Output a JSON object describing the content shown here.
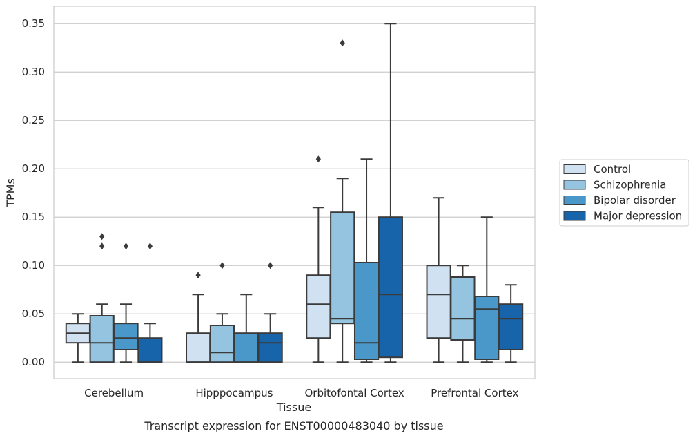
{
  "chart_data": {
    "type": "box",
    "xlabel": "Tissue",
    "ylabel": "TPMs",
    "caption": "Transcript expression for ENST00000483040 by tissue",
    "ylim": [
      -0.017,
      0.368
    ],
    "yticks": [
      "0.00",
      "0.05",
      "0.10",
      "0.15",
      "0.20",
      "0.25",
      "0.30",
      "0.35"
    ],
    "grid": "horizontal",
    "legend_position": "right",
    "categories": [
      "Cerebellum",
      "Hipppocampus",
      "Orbitofontal Cortex",
      "Prefrontal Cortex"
    ],
    "series": [
      {
        "name": "Control",
        "color": "#d0e1f2",
        "boxes": [
          {
            "whisker_low": 0.0,
            "q1": 0.02,
            "median": 0.03,
            "q3": 0.04,
            "whisker_high": 0.05,
            "outliers": []
          },
          {
            "whisker_low": 0.0,
            "q1": 0.0,
            "median": 0.0,
            "q3": 0.03,
            "whisker_high": 0.07,
            "outliers": [
              0.09
            ]
          },
          {
            "whisker_low": 0.0,
            "q1": 0.025,
            "median": 0.06,
            "q3": 0.09,
            "whisker_high": 0.16,
            "outliers": [
              0.21
            ]
          },
          {
            "whisker_low": 0.0,
            "q1": 0.025,
            "median": 0.07,
            "q3": 0.1,
            "whisker_high": 0.17,
            "outliers": []
          }
        ]
      },
      {
        "name": "Schizophrenia",
        "color": "#94c4df",
        "boxes": [
          {
            "whisker_low": 0.0,
            "q1": 0.0,
            "median": 0.02,
            "q3": 0.048,
            "whisker_high": 0.06,
            "outliers": [
              0.12,
              0.13
            ]
          },
          {
            "whisker_low": 0.0,
            "q1": 0.0,
            "median": 0.01,
            "q3": 0.038,
            "whisker_high": 0.05,
            "outliers": [
              0.1
            ]
          },
          {
            "whisker_low": 0.0,
            "q1": 0.04,
            "median": 0.045,
            "q3": 0.155,
            "whisker_high": 0.19,
            "outliers": [
              0.33
            ]
          },
          {
            "whisker_low": 0.0,
            "q1": 0.023,
            "median": 0.045,
            "q3": 0.088,
            "whisker_high": 0.1,
            "outliers": []
          }
        ]
      },
      {
        "name": "Bipolar disorder",
        "color": "#4a98c9",
        "boxes": [
          {
            "whisker_low": 0.0,
            "q1": 0.013,
            "median": 0.025,
            "q3": 0.04,
            "whisker_high": 0.06,
            "outliers": [
              0.12
            ]
          },
          {
            "whisker_low": 0.0,
            "q1": 0.0,
            "median": 0.0,
            "q3": 0.03,
            "whisker_high": 0.07,
            "outliers": []
          },
          {
            "whisker_low": 0.0,
            "q1": 0.003,
            "median": 0.02,
            "q3": 0.103,
            "whisker_high": 0.21,
            "outliers": []
          },
          {
            "whisker_low": 0.0,
            "q1": 0.003,
            "median": 0.055,
            "q3": 0.068,
            "whisker_high": 0.15,
            "outliers": []
          }
        ]
      },
      {
        "name": "Major depression",
        "color": "#1764ab",
        "boxes": [
          {
            "whisker_low": 0.0,
            "q1": 0.0,
            "median": 0.0,
            "q3": 0.025,
            "whisker_high": 0.04,
            "outliers": [
              0.12
            ]
          },
          {
            "whisker_low": 0.0,
            "q1": 0.0,
            "median": 0.02,
            "q3": 0.03,
            "whisker_high": 0.05,
            "outliers": [
              0.1
            ]
          },
          {
            "whisker_low": 0.0,
            "q1": 0.005,
            "median": 0.07,
            "q3": 0.15,
            "whisker_high": 0.35,
            "outliers": []
          },
          {
            "whisker_low": 0.0,
            "q1": 0.013,
            "median": 0.045,
            "q3": 0.06,
            "whisker_high": 0.08,
            "outliers": []
          }
        ]
      }
    ]
  }
}
